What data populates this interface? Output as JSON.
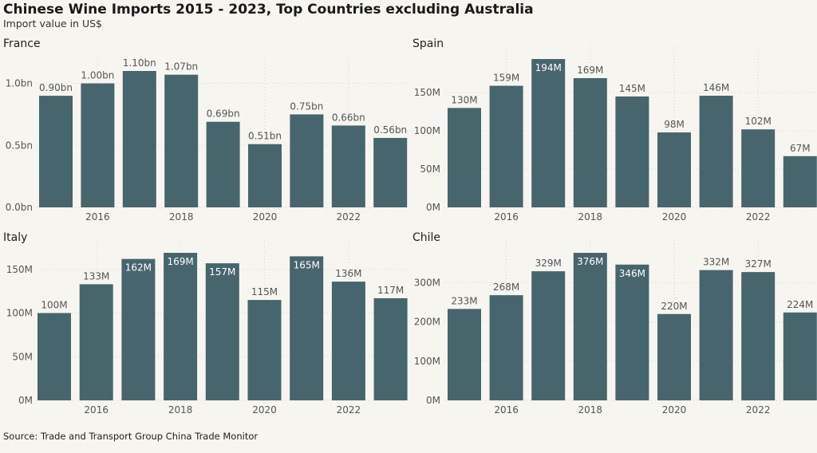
{
  "title": "Chinese Wine Imports 2015 - 2023, Top Countries excluding Australia",
  "subtitle": "Import value in US$",
  "source": "Source: Trade and Transport Group China Trade Monitor",
  "colors": {
    "bar": "#47656c",
    "label_outside": "#555555",
    "label_inside": "#ffffff",
    "background": "#f7f5f0"
  },
  "chart_data": [
    {
      "type": "bar",
      "title": "France",
      "categories": [
        "2015",
        "2016",
        "2017",
        "2018",
        "2019",
        "2020",
        "2021",
        "2022",
        "2023"
      ],
      "x_ticks": [
        "2016",
        "2018",
        "2020",
        "2022"
      ],
      "values": [
        0.9,
        1.0,
        1.1,
        1.07,
        0.69,
        0.51,
        0.75,
        0.66,
        0.56
      ],
      "unit": "bn",
      "value_labels": [
        "0.90bn",
        "1.00bn",
        "1.10bn",
        "1.07bn",
        "0.69bn",
        "0.51bn",
        "0.75bn",
        "0.66bn",
        "0.56bn"
      ],
      "label_inside": [
        false,
        false,
        false,
        false,
        false,
        false,
        false,
        false,
        false
      ],
      "y_ticks": [
        0,
        0.5,
        1.0
      ],
      "y_tick_labels": [
        "0.0bn",
        "0.5bn",
        "1.0bn"
      ],
      "ylim": [
        0,
        1.1
      ]
    },
    {
      "type": "bar",
      "title": "Spain",
      "categories": [
        "2015",
        "2016",
        "2017",
        "2018",
        "2019",
        "2020",
        "2021",
        "2022",
        "2023"
      ],
      "x_ticks": [
        "2016",
        "2018",
        "2020",
        "2022"
      ],
      "values": [
        130,
        159,
        194,
        169,
        145,
        98,
        146,
        102,
        67
      ],
      "unit": "M",
      "value_labels": [
        "130M",
        "159M",
        "194M",
        "169M",
        "145M",
        "98M",
        "146M",
        "102M",
        "67M"
      ],
      "label_inside": [
        false,
        false,
        true,
        false,
        false,
        false,
        false,
        false,
        false
      ],
      "y_ticks": [
        0,
        50,
        100,
        150
      ],
      "y_tick_labels": [
        "0M",
        "50M",
        "100M",
        "150M"
      ],
      "ylim": [
        0,
        194
      ]
    },
    {
      "type": "bar",
      "title": "Italy",
      "categories": [
        "2015",
        "2016",
        "2017",
        "2018",
        "2019",
        "2020",
        "2021",
        "2022",
        "2023"
      ],
      "x_ticks": [
        "2016",
        "2018",
        "2020",
        "2022"
      ],
      "values": [
        100,
        133,
        162,
        169,
        157,
        115,
        165,
        136,
        117
      ],
      "unit": "M",
      "value_labels": [
        "100M",
        "133M",
        "162M",
        "169M",
        "157M",
        "115M",
        "165M",
        "136M",
        "117M"
      ],
      "label_inside": [
        false,
        false,
        true,
        true,
        true,
        false,
        true,
        false,
        false
      ],
      "y_ticks": [
        0,
        50,
        100,
        150
      ],
      "y_tick_labels": [
        "0M",
        "50M",
        "100M",
        "150M"
      ],
      "ylim": [
        0,
        169
      ]
    },
    {
      "type": "bar",
      "title": "Chile",
      "categories": [
        "2015",
        "2016",
        "2017",
        "2018",
        "2019",
        "2020",
        "2021",
        "2022",
        "2023"
      ],
      "x_ticks": [
        "2016",
        "2018",
        "2020",
        "2022"
      ],
      "values": [
        233,
        268,
        329,
        376,
        346,
        220,
        332,
        327,
        224
      ],
      "unit": "M",
      "value_labels": [
        "233M",
        "268M",
        "329M",
        "376M",
        "346M",
        "220M",
        "332M",
        "327M",
        "224M"
      ],
      "label_inside": [
        false,
        false,
        false,
        true,
        true,
        false,
        false,
        false,
        false
      ],
      "y_ticks": [
        0,
        100,
        200,
        300
      ],
      "y_tick_labels": [
        "0M",
        "100M",
        "200M",
        "300M"
      ],
      "ylim": [
        0,
        376
      ]
    }
  ]
}
